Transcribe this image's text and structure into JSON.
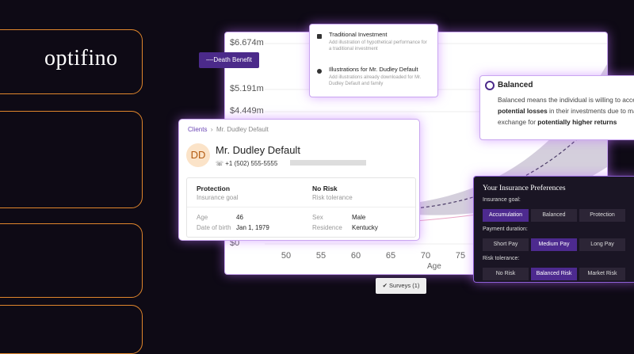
{
  "logo": "optifino",
  "background_chart": {
    "legend": "Death Benefit",
    "y_labels": [
      "$6.674m",
      "$5.191m",
      "$4.449m",
      "$0"
    ],
    "x_labels": [
      "50",
      "55",
      "60",
      "65",
      "70",
      "75"
    ],
    "x_title": "Age"
  },
  "menu": {
    "items": [
      {
        "title": "Traditional Investment",
        "text": "Add illustration of hypothetical performance for a traditional investment"
      },
      {
        "title": "Illustrations for Mr. Dudley Default",
        "text": "Add illustrations already downloaded for Mr. Dudley Default and family"
      }
    ]
  },
  "balanced_card": {
    "title": "Balanced",
    "text": [
      "Balanced means the individual is willing to accept a ",
      "certain level of potential losses",
      " in their investments due to market fluctuations in exchange for ",
      "potentially higher returns"
    ]
  },
  "client_card": {
    "breadcrumb": [
      "Clients",
      "Mr. Dudley Default"
    ],
    "initials": "DD",
    "name": "Mr. Dudley Default",
    "phone": "+1 (502) 555-5555",
    "goal": {
      "value": "Protection",
      "label": "Insurance goal"
    },
    "risk": {
      "value": "No Risk",
      "label": "Risk tolerance"
    },
    "details": [
      {
        "label": "Age",
        "value": "46"
      },
      {
        "label": "Date of birth",
        "value": "Jan 1, 1979"
      },
      {
        "label": "Sex",
        "value": "Male"
      },
      {
        "label": "Residence",
        "value": "Kentucky"
      }
    ]
  },
  "preferences": {
    "title": "Your Insurance Preferences",
    "groups": [
      {
        "label": "Insurance goal:",
        "options": [
          "Accumulation",
          "Balanced",
          "Protection"
        ],
        "selected_index": 0
      },
      {
        "label": "Payment duration:",
        "options": [
          "Short Pay",
          "Medium Pay",
          "Long Pay"
        ],
        "selected_index": 1
      },
      {
        "label": "Risk tolerance:",
        "options": [
          "No Risk",
          "Balanced Risk",
          "Market Risk"
        ],
        "selected_index": 1
      }
    ]
  },
  "surveys_button": "Surveys (1)"
}
